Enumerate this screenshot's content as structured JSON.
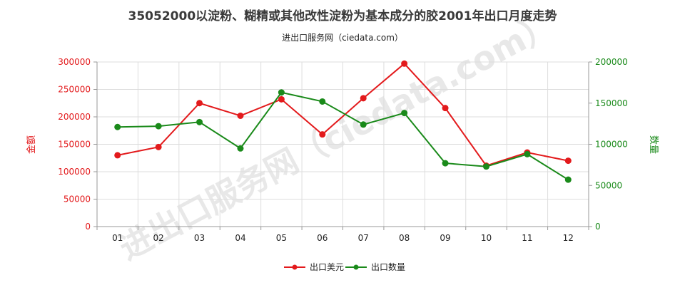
{
  "title": "35052000以淀粉、糊精或其他改性淀粉为基本成分的胶2001年出口月度走势",
  "subtitle": "进出口服务网（ciedata.com）",
  "watermark": "进出口服务网（ciedata.com）",
  "colors": {
    "amount": "#e31a1c",
    "quantity": "#1a8a1a",
    "grid": "#dddddd",
    "axis": "#999999"
  },
  "chart_data": {
    "type": "line",
    "title": "35052000以淀粉、糊精或其他改性淀粉为基本成分的胶2001年出口月度走势",
    "categories": [
      "01",
      "02",
      "03",
      "04",
      "05",
      "06",
      "07",
      "08",
      "09",
      "10",
      "11",
      "12"
    ],
    "y_left": {
      "label": "金额",
      "range": [
        0,
        300000
      ],
      "ticks": [
        "0",
        "50000",
        "100000",
        "150000",
        "200000",
        "250000",
        "300000"
      ]
    },
    "y_right": {
      "label": "数量",
      "range": [
        0,
        200000
      ],
      "ticks": [
        "0",
        "50000",
        "100000",
        "150000",
        "200000"
      ]
    },
    "grid": true,
    "legend_position": "bottom-center",
    "series": [
      {
        "name": "出口美元",
        "axis": "left",
        "values": [
          130000,
          145000,
          225000,
          202000,
          232000,
          168000,
          234000,
          297000,
          216000,
          111000,
          135000,
          120000
        ]
      },
      {
        "name": "出口数量",
        "axis": "right",
        "values": [
          121000,
          122000,
          127000,
          95000,
          163000,
          152000,
          124000,
          138000,
          77000,
          73000,
          88000,
          57000
        ]
      }
    ]
  }
}
